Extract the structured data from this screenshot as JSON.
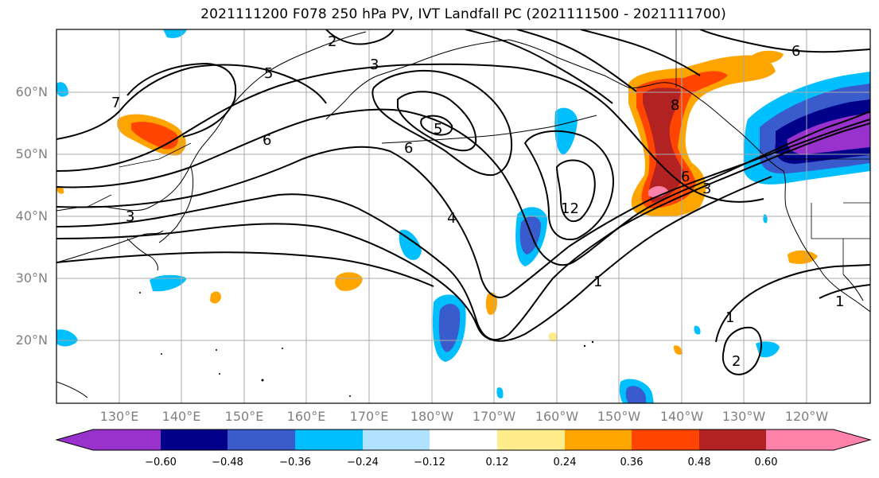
{
  "title": "2021111200 F078 250 hPa PV, IVT Landfall PC (2021111500 - 2021111700)",
  "lat_labels": [
    "60°N",
    "50°N",
    "40°N",
    "30°N",
    "20°N"
  ],
  "lon_labels": [
    "130°E",
    "140°E",
    "150°E",
    "160°E",
    "170°E",
    "180°W",
    "170°W",
    "160°W",
    "150°W",
    "140°W",
    "130°W",
    "120°W"
  ],
  "contour_labels": [
    "3",
    "5",
    "6",
    "7",
    "3",
    "6",
    "5",
    "4",
    "12",
    "8",
    "6",
    "3",
    "1",
    "1",
    "2",
    "1",
    "2",
    "6"
  ],
  "colorbar": {
    "ticks": [
      "−0.60",
      "−0.48",
      "−0.36",
      "−0.24",
      "−0.12",
      "0.12",
      "0.24",
      "0.36",
      "0.48",
      "0.60"
    ],
    "colors": [
      "#9932cc",
      "#00008b",
      "#3a5bcc",
      "#00bfff",
      "#b0e2ff",
      "#ffffff",
      "#ffec8b",
      "#ffa500",
      "#ff4500",
      "#b22222",
      "#ff82ab"
    ]
  }
}
